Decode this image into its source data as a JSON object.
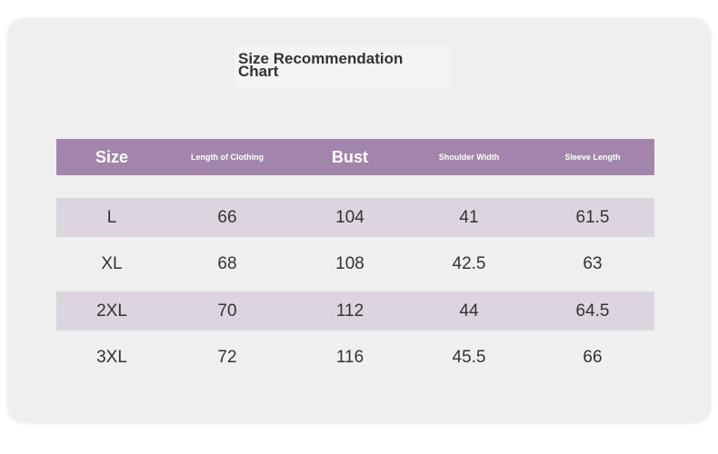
{
  "title": "Size Recommendation Chart",
  "table": {
    "header": [
      "Size",
      "Length of Clothing",
      "Bust",
      "Shoulder Width",
      "Sleeve Length"
    ],
    "rows": [
      [
        "L",
        66,
        104,
        41,
        61.5
      ],
      [
        "XL",
        68,
        108,
        42.5,
        63
      ],
      [
        "2XL",
        70,
        112,
        44,
        64.5
      ],
      [
        "3XL",
        72,
        116,
        45.5,
        66
      ]
    ]
  }
}
